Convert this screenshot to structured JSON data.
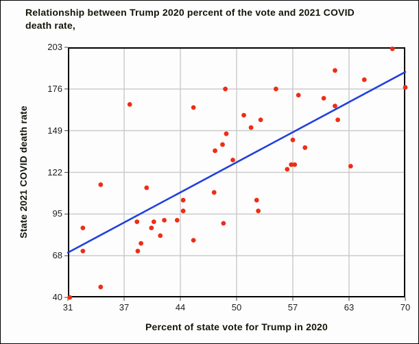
{
  "figure": {
    "title_lines": [
      "Relationship between Trump 2020 percent of the vote and 2021 COVID",
      "death rate,"
    ]
  },
  "chart_data": {
    "type": "scatter",
    "title": "Relationship between Trump 2020 percent of the vote and 2021 COVID death rate,",
    "xlabel": "Percent of state vote for Trump in 2020",
    "ylabel": "State 2021 COVID death rate",
    "x_ticks": [
      31,
      37,
      44,
      50,
      57,
      63,
      70
    ],
    "y_ticks": [
      203,
      176,
      149,
      122,
      95,
      68,
      40
    ],
    "xlim": [
      31,
      70
    ],
    "ylim": [
      40,
      203
    ],
    "grid": true,
    "legend_position": "none",
    "points": [
      [
        31.2,
        40
      ],
      [
        32.6,
        71
      ],
      [
        32.6,
        86
      ],
      [
        34.5,
        47
      ],
      [
        34.5,
        114
      ],
      [
        37.7,
        166
      ],
      [
        38.6,
        90
      ],
      [
        38.7,
        71
      ],
      [
        39.1,
        76
      ],
      [
        39.8,
        112
      ],
      [
        40.4,
        86
      ],
      [
        40.7,
        90
      ],
      [
        41.5,
        81
      ],
      [
        42.0,
        91
      ],
      [
        43.6,
        91
      ],
      [
        44.3,
        97
      ],
      [
        44.3,
        104
      ],
      [
        45.4,
        78
      ],
      [
        45.4,
        164
      ],
      [
        47.6,
        109
      ],
      [
        47.7,
        136
      ],
      [
        48.5,
        140
      ],
      [
        48.6,
        89
      ],
      [
        48.8,
        176
      ],
      [
        48.9,
        147
      ],
      [
        49.6,
        130
      ],
      [
        50.9,
        159
      ],
      [
        51.8,
        151
      ],
      [
        52.5,
        104
      ],
      [
        52.7,
        97
      ],
      [
        53.0,
        156
      ],
      [
        54.9,
        176
      ],
      [
        56.3,
        124
      ],
      [
        56.8,
        127
      ],
      [
        57.0,
        143
      ],
      [
        57.2,
        127
      ],
      [
        57.6,
        172
      ],
      [
        58.3,
        138
      ],
      [
        60.3,
        170
      ],
      [
        61.5,
        165
      ],
      [
        61.5,
        188
      ],
      [
        61.8,
        156
      ],
      [
        63.2,
        126
      ],
      [
        64.9,
        182
      ],
      [
        68.4,
        202
      ],
      [
        70.0,
        177
      ]
    ],
    "trendline": {
      "type": "linear",
      "x1": 31,
      "y1": 70,
      "x2": 70,
      "y2": 187
    },
    "colors": {
      "point": "#ee2d16",
      "trendline": "#2040dd",
      "grid": "#cbcbcb",
      "axis": "#000000",
      "tick": "#444444",
      "text": "#141408",
      "background": "#fdfdfe"
    }
  }
}
